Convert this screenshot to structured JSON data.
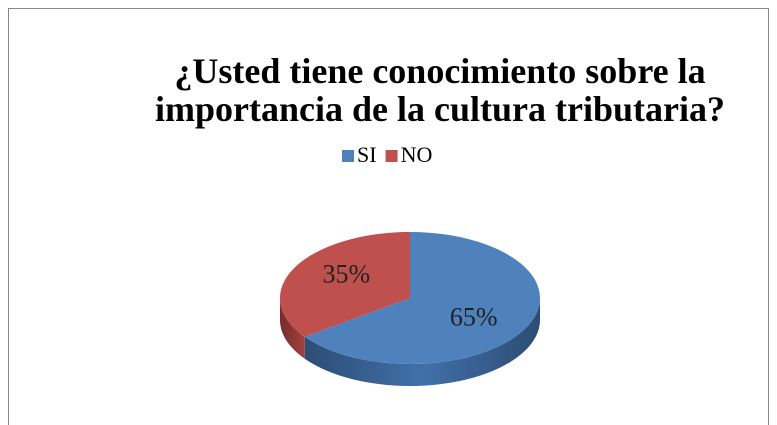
{
  "chart_data": {
    "type": "pie",
    "title": "¿Usted tiene conocimiento sobre la importancia de la cultura tributaria?",
    "categories": [
      "SI",
      "NO"
    ],
    "values": [
      65,
      35
    ],
    "value_labels": [
      "65%",
      "35%"
    ],
    "colors": [
      "#4f81bd",
      "#c0504d"
    ],
    "legend": "top"
  }
}
